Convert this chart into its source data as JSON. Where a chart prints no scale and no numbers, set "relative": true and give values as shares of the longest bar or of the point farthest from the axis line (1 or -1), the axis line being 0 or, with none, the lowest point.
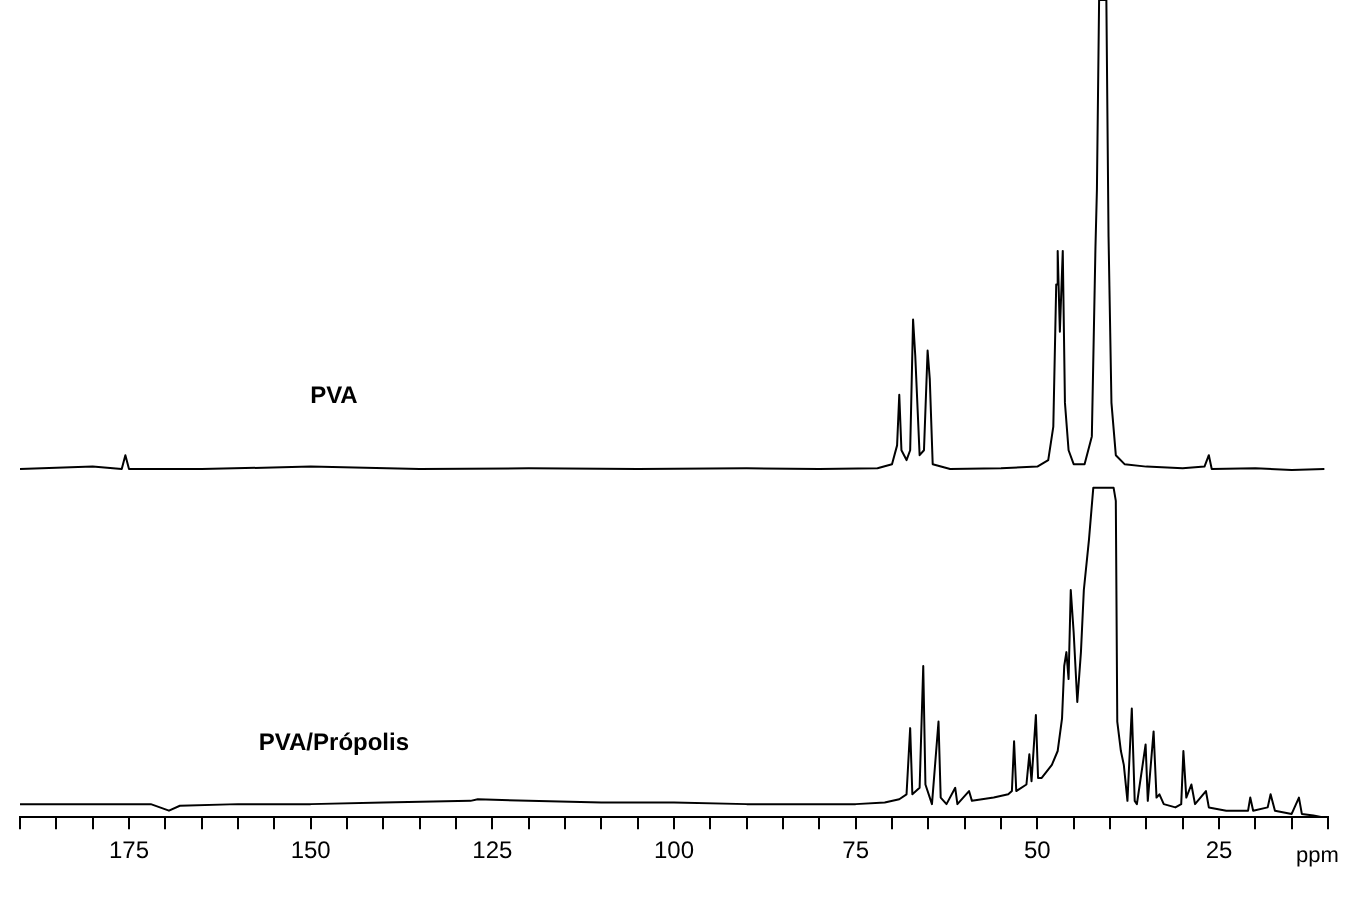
{
  "chart_data": {
    "type": "line",
    "relative": true,
    "xlim": [
      190,
      10
    ],
    "xlabel": "ppm",
    "legend": false,
    "marker": "none",
    "line_style": "solid",
    "xticks": [
      {
        "value": 190,
        "label": null
      },
      {
        "value": 185,
        "label": null
      },
      {
        "value": 180,
        "label": null
      },
      175,
      {
        "value": 170,
        "label": null
      },
      {
        "value": 165,
        "label": null
      },
      {
        "value": 160,
        "label": null
      },
      {
        "value": 155,
        "label": null
      },
      150,
      {
        "value": 145,
        "label": null
      },
      {
        "value": 140,
        "label": null
      },
      {
        "value": 135,
        "label": null
      },
      {
        "value": 130,
        "label": null
      },
      125,
      {
        "value": 120,
        "label": null
      },
      {
        "value": 115,
        "label": null
      },
      {
        "value": 110,
        "label": null
      },
      {
        "value": 105,
        "label": null
      },
      100,
      {
        "value": 95,
        "label": null
      },
      {
        "value": 90,
        "label": null
      },
      {
        "value": 85,
        "label": null
      },
      {
        "value": 80,
        "label": null
      },
      75,
      {
        "value": 70,
        "label": null
      },
      {
        "value": 65,
        "label": null
      },
      {
        "value": 60,
        "label": null
      },
      {
        "value": 55,
        "label": null
      },
      50,
      {
        "value": 45,
        "label": null
      },
      {
        "value": 40,
        "label": null
      },
      {
        "value": 35,
        "label": null
      },
      {
        "value": 30,
        "label": null
      },
      25,
      {
        "value": 20,
        "label": null
      },
      {
        "value": 15,
        "label": null
      },
      {
        "value": 10,
        "label": null
      }
    ],
    "series": [
      {
        "name": "PVA",
        "color": "#000000",
        "x": [
          190,
          180,
          176,
          175.5,
          175,
          165,
          150,
          135,
          120,
          105,
          90,
          80,
          72,
          70,
          69.3,
          69.0,
          68.7,
          68.0,
          67.5,
          67.1,
          66.8,
          66.2,
          65.6,
          65.1,
          64.8,
          64.4,
          62,
          55,
          50,
          48.5,
          47.8,
          47.4,
          47.2,
          46.9,
          46.5,
          46.2,
          45.7,
          45,
          43.5,
          42.5,
          42.0,
          41.8,
          41.5,
          40.5,
          40.2,
          39.8,
          39.2,
          38,
          35,
          30,
          27,
          26.4,
          26,
          20,
          15,
          10.5
        ],
        "values": [
          0.426,
          0.429,
          0.426,
          0.443,
          0.426,
          0.426,
          0.429,
          0.426,
          0.427,
          0.426,
          0.427,
          0.426,
          0.427,
          0.432,
          0.455,
          0.517,
          0.449,
          0.437,
          0.449,
          0.609,
          0.565,
          0.443,
          0.449,
          0.571,
          0.536,
          0.432,
          0.426,
          0.427,
          0.429,
          0.437,
          0.478,
          0.652,
          0.693,
          0.594,
          0.693,
          0.507,
          0.449,
          0.432,
          0.432,
          0.466,
          0.698,
          0.768,
          1.0,
          1.0,
          0.71,
          0.507,
          0.443,
          0.432,
          0.429,
          0.427,
          0.429,
          0.443,
          0.426,
          0.427,
          0.425,
          0.426
        ]
      },
      {
        "name": "PVA/Própolis",
        "color": "#000000",
        "x": [
          190,
          180,
          172,
          169.5,
          168,
          160,
          150,
          140,
          128,
          127,
          120,
          110,
          100,
          90,
          80,
          75,
          71,
          69,
          68,
          67.5,
          67.2,
          66.2,
          65.7,
          65.4,
          64.5,
          63.6,
          63.3,
          62.5,
          61.3,
          61,
          59.4,
          59,
          56,
          54,
          53.5,
          53.2,
          52.9,
          51.5,
          51.1,
          50.8,
          50.2,
          49.9,
          49.4,
          48,
          47.2,
          46.6,
          46.3,
          46.0,
          45.7,
          45.4,
          45.0,
          44.5,
          44.0,
          43.6,
          42.9,
          42.3,
          39.5,
          39.2,
          39.0,
          38.5,
          38.1,
          37.6,
          37.0,
          36.6,
          36.3,
          35.1,
          34.8,
          34.0,
          33.6,
          33.2,
          32.6,
          31,
          30.2,
          29.9,
          29.5,
          28.8,
          28.3,
          26.8,
          26.4,
          24,
          21,
          20.7,
          20.3,
          18.3,
          17.9,
          17.3,
          15,
          14.0,
          13.6,
          12,
          10.8
        ],
        "values": [
          0.016,
          0.016,
          0.016,
          0.008,
          0.014,
          0.016,
          0.016,
          0.018,
          0.02,
          0.022,
          0.02,
          0.018,
          0.018,
          0.016,
          0.016,
          0.016,
          0.018,
          0.022,
          0.028,
          0.109,
          0.028,
          0.036,
          0.185,
          0.04,
          0.016,
          0.117,
          0.024,
          0.016,
          0.036,
          0.016,
          0.032,
          0.02,
          0.024,
          0.028,
          0.032,
          0.093,
          0.032,
          0.04,
          0.077,
          0.044,
          0.125,
          0.048,
          0.048,
          0.064,
          0.081,
          0.121,
          0.185,
          0.202,
          0.169,
          0.278,
          0.226,
          0.141,
          0.202,
          0.278,
          0.339,
          0.403,
          0.403,
          0.387,
          0.117,
          0.081,
          0.064,
          0.02,
          0.133,
          0.02,
          0.016,
          0.089,
          0.02,
          0.105,
          0.024,
          0.028,
          0.016,
          0.012,
          0.016,
          0.081,
          0.024,
          0.04,
          0.016,
          0.032,
          0.012,
          0.008,
          0.008,
          0.024,
          0.008,
          0.012,
          0.028,
          0.008,
          0.004,
          0.024,
          0.004,
          0.002,
          0
        ]
      }
    ]
  }
}
